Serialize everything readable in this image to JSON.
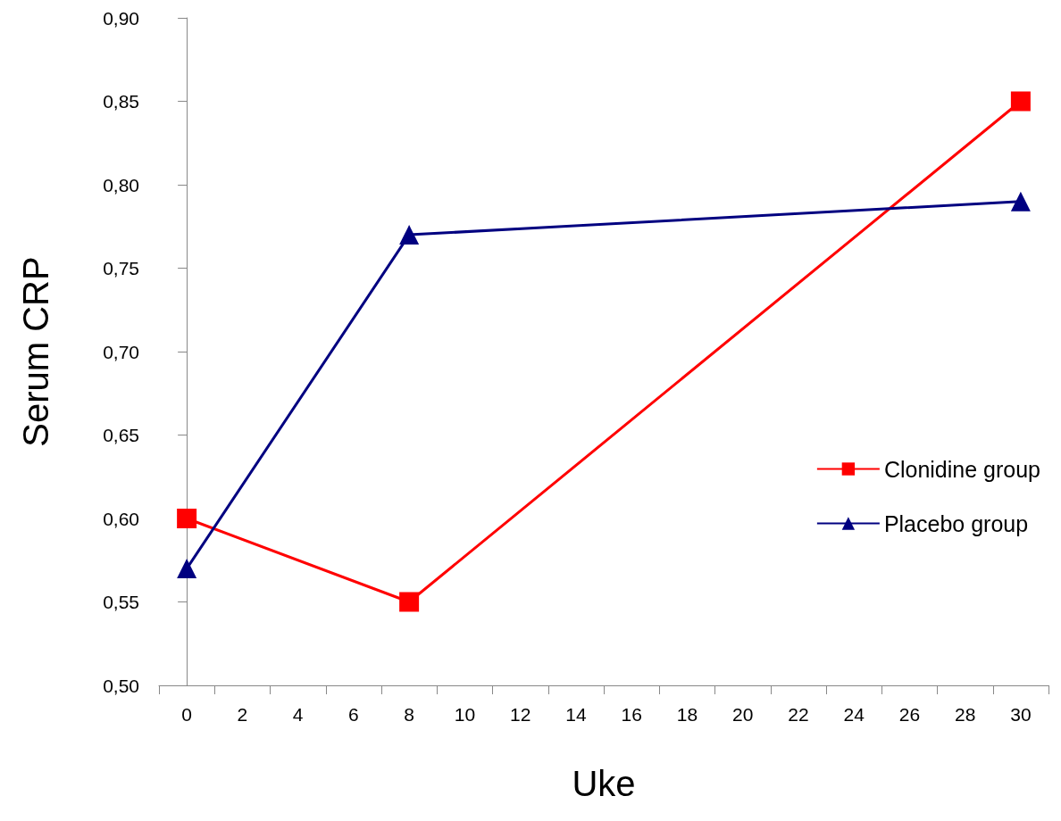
{
  "chart_data": {
    "type": "line",
    "xlabel": "Uke",
    "ylabel": "Serum CRP",
    "x": [
      0,
      8,
      30
    ],
    "series": [
      {
        "name": "Clonidine group",
        "color": "#ff0000",
        "marker": "square",
        "values": [
          0.6,
          0.55,
          0.85
        ]
      },
      {
        "name": "Placebo group",
        "color": "#000080",
        "marker": "triangle",
        "values": [
          0.57,
          0.77,
          0.79
        ]
      }
    ],
    "xlim": [
      -1,
      31
    ],
    "xticks": [
      {
        "value": -1,
        "label": null
      },
      0,
      {
        "value": 1,
        "label": null
      },
      2,
      {
        "value": 3,
        "label": null
      },
      4,
      {
        "value": 5,
        "label": null
      },
      6,
      {
        "value": 7,
        "label": null
      },
      8,
      {
        "value": 9,
        "label": null
      },
      10,
      {
        "value": 11,
        "label": null
      },
      12,
      {
        "value": 13,
        "label": null
      },
      14,
      {
        "value": 15,
        "label": null
      },
      16,
      {
        "value": 17,
        "label": null
      },
      18,
      {
        "value": 19,
        "label": null
      },
      20,
      {
        "value": 21,
        "label": null
      },
      22,
      {
        "value": 23,
        "label": null
      },
      24,
      {
        "value": 25,
        "label": null
      },
      26,
      {
        "value": 27,
        "label": null
      },
      28,
      {
        "value": 29,
        "label": null
      },
      30,
      {
        "value": 31,
        "label": null
      }
    ],
    "ylim": [
      0.5,
      0.9
    ],
    "yticks": [
      {
        "value": 0.5,
        "label": "0,50"
      },
      {
        "value": 0.55,
        "label": "0,55"
      },
      {
        "value": 0.6,
        "label": "0,60"
      },
      {
        "value": 0.65,
        "label": "0,65"
      },
      {
        "value": 0.7,
        "label": "0,70"
      },
      {
        "value": 0.75,
        "label": "0,75"
      },
      {
        "value": 0.8,
        "label": "0,80"
      },
      {
        "value": 0.85,
        "label": "0,85"
      },
      {
        "value": 0.9,
        "label": "0,90"
      }
    ],
    "grid": false,
    "legend": "right",
    "line_style": "solid"
  }
}
